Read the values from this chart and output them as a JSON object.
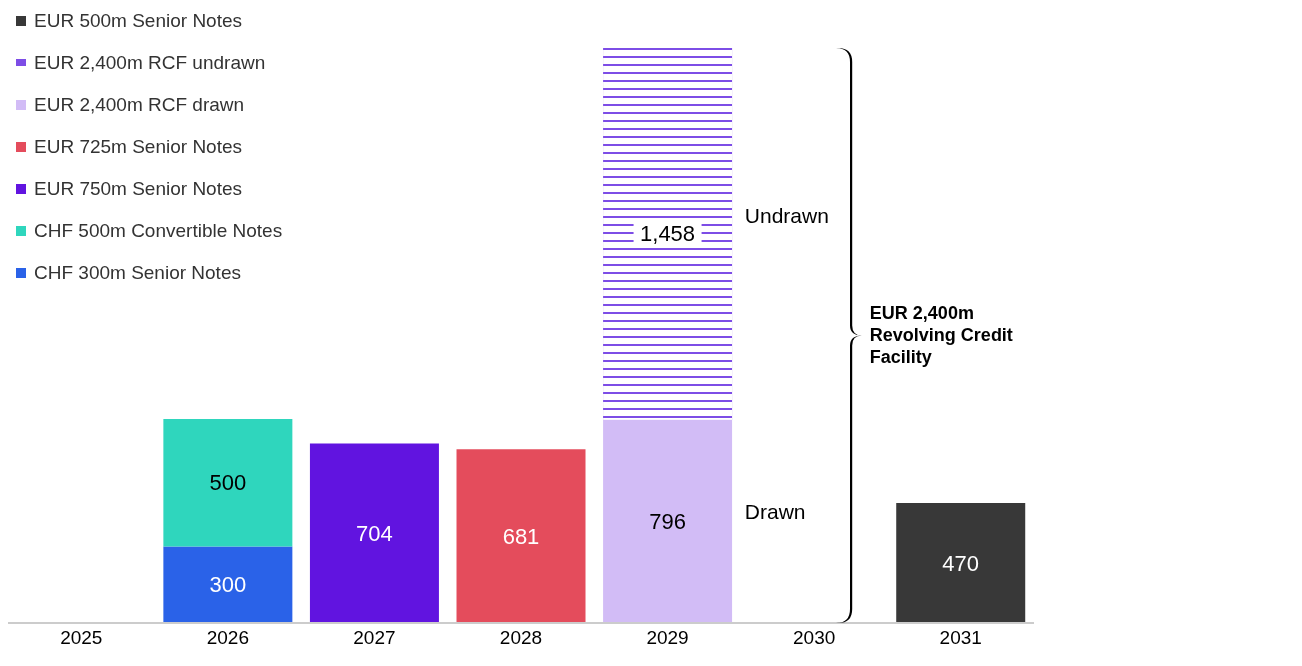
{
  "chart_data": {
    "type": "bar",
    "stacked": true,
    "legend": "top left",
    "data_labels": true,
    "categories": [
      "2025",
      "2026",
      "2027",
      "2028",
      "2029",
      "2030",
      "2031"
    ],
    "series": [
      {
        "name": "CHF 300m Senior Notes",
        "color": "#2a62e8",
        "values": [
          null,
          300,
          null,
          null,
          null,
          null,
          null
        ]
      },
      {
        "name": "CHF 500m Convertible Notes",
        "color": "#2fd6bd",
        "values": [
          null,
          500,
          null,
          null,
          null,
          null,
          null
        ]
      },
      {
        "name": "EUR 750m Senior Notes",
        "color": "#6114e0",
        "values": [
          null,
          null,
          704,
          null,
          null,
          null,
          null
        ]
      },
      {
        "name": "EUR 725m Senior Notes",
        "color": "#e44c5c",
        "values": [
          null,
          null,
          null,
          681,
          null,
          null,
          null
        ]
      },
      {
        "name": "EUR 2,400m RCF drawn",
        "color": "#d2bcf6",
        "values": [
          null,
          null,
          null,
          null,
          796,
          null,
          null
        ]
      },
      {
        "name": "EUR 2,400m RCF undrawn",
        "color": "#7d4de6",
        "line_style": "dashed",
        "values": [
          null,
          null,
          null,
          null,
          1458,
          null,
          null
        ],
        "value_labels": [
          null,
          null,
          null,
          null,
          "1,458",
          null,
          null
        ]
      },
      {
        "name": "EUR 500m Senior Notes",
        "color": "#383838",
        "values": [
          null,
          null,
          null,
          null,
          null,
          null,
          470
        ]
      }
    ],
    "annotations": [
      "Undrawn",
      "Drawn",
      "EUR 2,400m Revolving Credit Facility"
    ]
  }
}
